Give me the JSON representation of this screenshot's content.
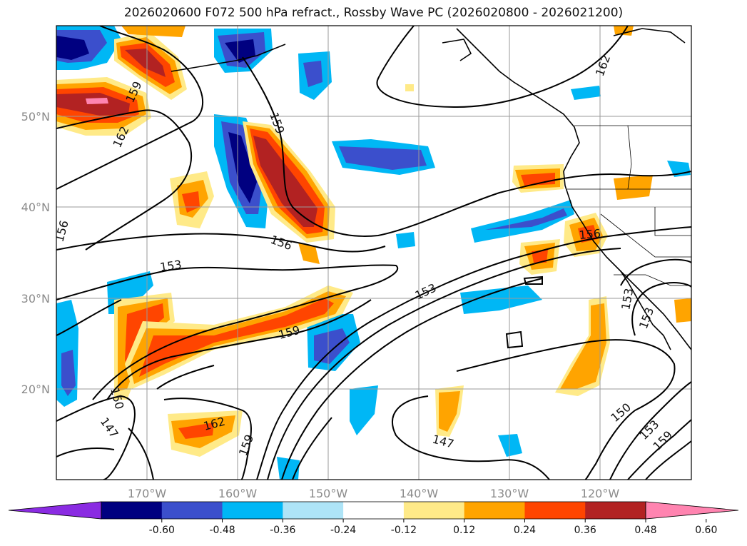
{
  "title": "2026020600 F072 500 hPa refract., Rossby Wave PC (2026020800 - 2026021200)",
  "map": {
    "lat_labels": [
      "50°N",
      "40°N",
      "30°N",
      "20°N"
    ],
    "lon_labels": [
      "170°W",
      "160°W",
      "150°W",
      "140°W",
      "130°W",
      "120°W"
    ],
    "contour_labels": [
      "159",
      "162",
      "159",
      "156",
      "156",
      "153",
      "156",
      "153",
      "153",
      "159",
      "150",
      "147",
      "162",
      "159",
      "147",
      "150",
      "153",
      "159",
      "153",
      "162",
      "159",
      "156"
    ]
  },
  "colorbar": {
    "ticks": [
      "-0.60",
      "-0.48",
      "-0.36",
      "-0.24",
      "-0.12",
      "0.12",
      "0.24",
      "0.36",
      "0.48",
      "0.60"
    ],
    "colors": [
      "#8a2be2",
      "#000080",
      "#3b4fcc",
      "#00b7f5",
      "#aee4f7",
      "#ffffff",
      "#ffea88",
      "#ffa400",
      "#ff4500",
      "#b22222",
      "#ff84b0"
    ]
  },
  "colors": {
    "neg_strong": "#000080",
    "neg_mid": "#3b4fcc",
    "neg_light": "#00b7f5",
    "neg_faint": "#aee4f7",
    "pos_faint": "#ffea88",
    "pos_light": "#ffa400",
    "pos_mid": "#ff4500",
    "pos_strong": "#b22222",
    "pos_max": "#ff84b0"
  }
}
